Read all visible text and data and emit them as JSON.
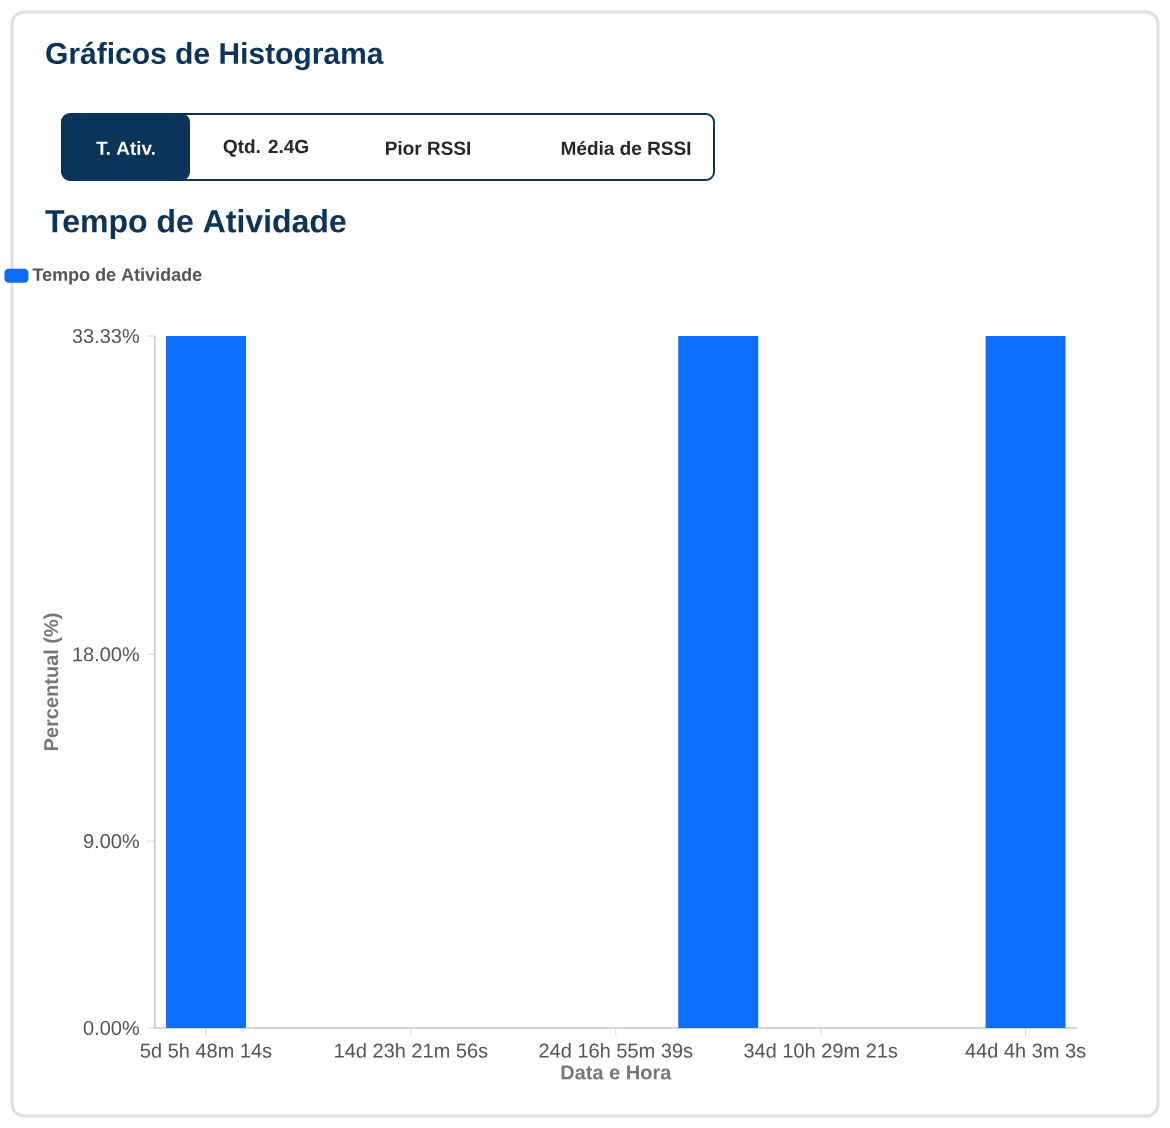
{
  "chart_data": {
    "type": "bar",
    "title": "Tempo de Atividade",
    "xlabel": "Data e Hora",
    "ylabel": "Percentual (%)",
    "annotations": [
      "Gráficos de Histograma",
      "T. Ativ.",
      "Qtd. 2.4G",
      "Pior RSSI",
      "Média de RSSI"
    ],
    "categories": [
      "5d 5h 48m 14s",
      null,
      "14d 23h 21m 56s",
      null,
      "24d 16h 55m 39s",
      null,
      "34d 10h 29m 21s",
      null,
      "44d 4h 3m 3s"
    ],
    "series": [
      {
        "name": "Tempo de Atividade",
        "color": "#0d6efd",
        "values": [
          33.33,
          0,
          0,
          0,
          0,
          33.33,
          0,
          0,
          33.33
        ]
      }
    ],
    "ylim": [
      0,
      33.33
    ],
    "yticks": [
      {
        "value": 0,
        "label": "0.00%"
      },
      {
        "value": 9,
        "label": "9.00%"
      },
      {
        "value": 18,
        "label": "18.00%"
      },
      {
        "value": 33.33,
        "label": "33.33%"
      }
    ],
    "legend": "top left"
  }
}
